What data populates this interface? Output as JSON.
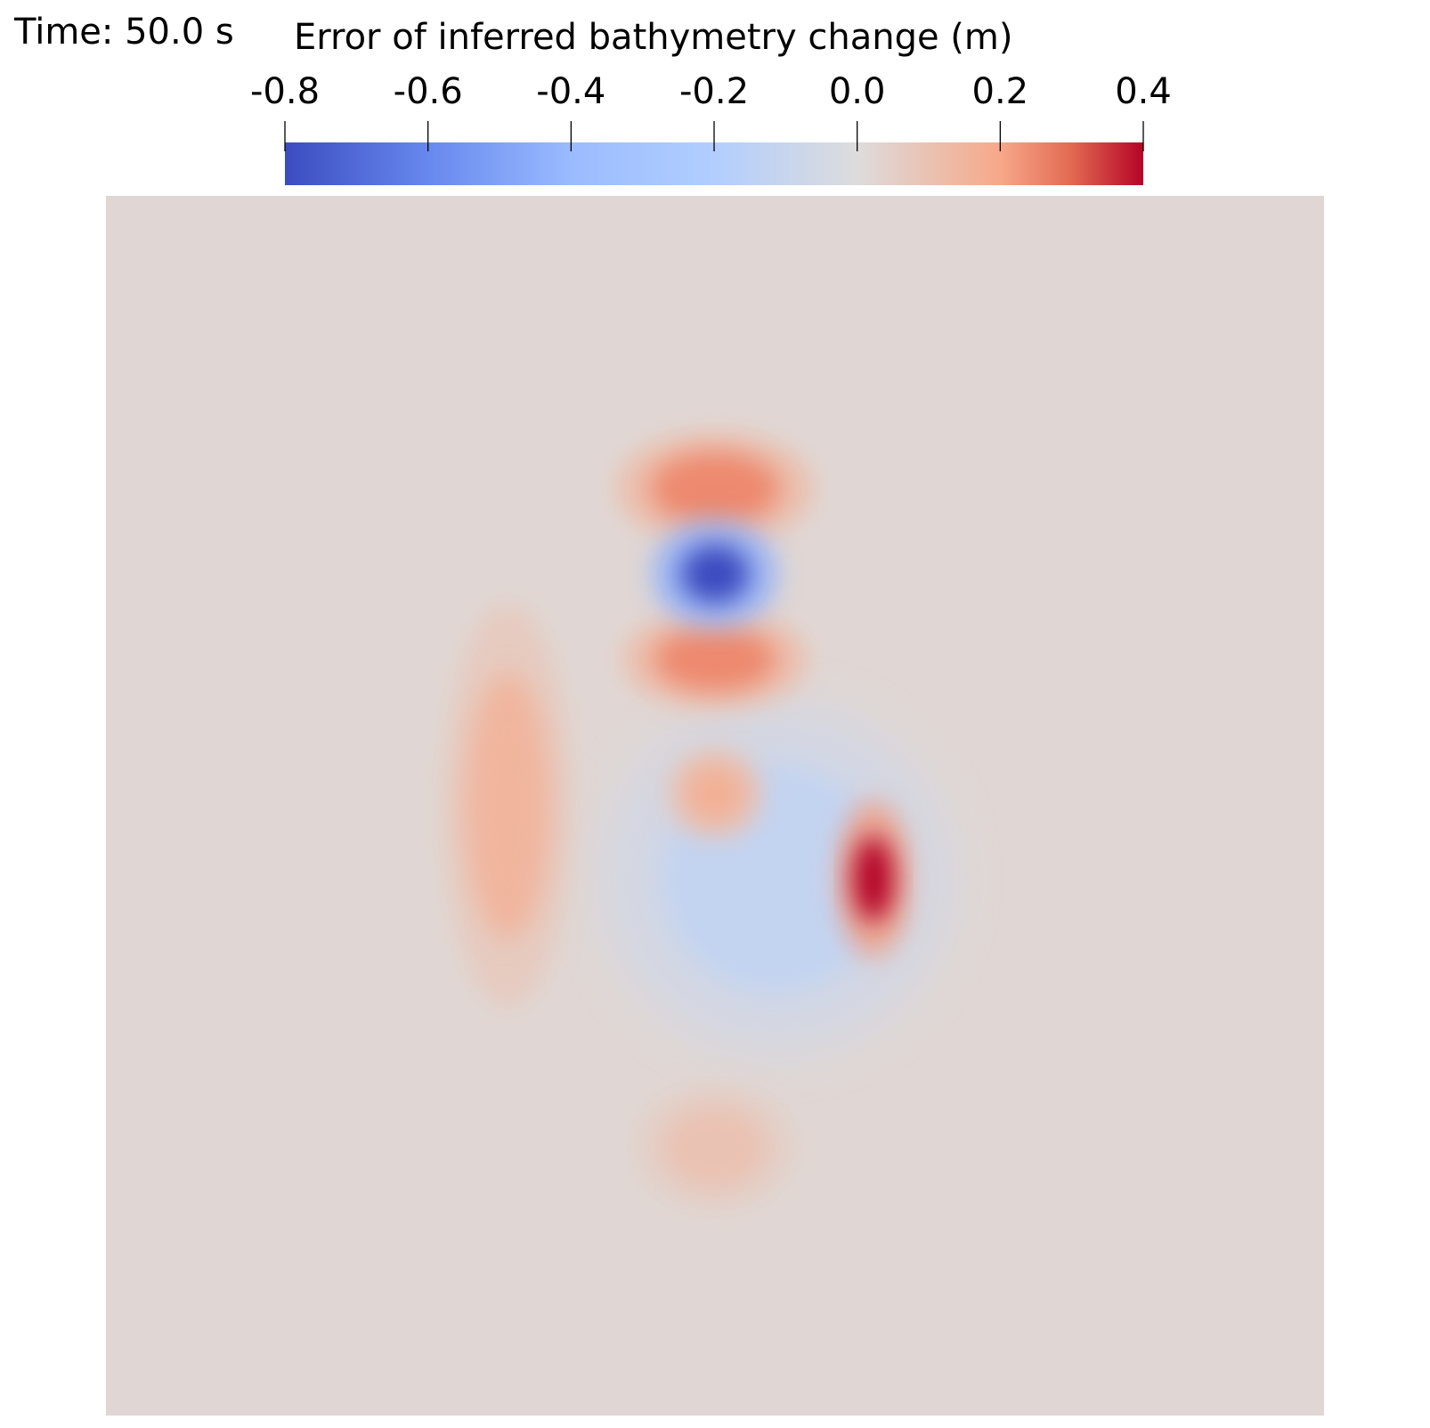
{
  "time_label": "Time: 50.0 s",
  "chart_data": {
    "type": "heatmap",
    "title": "Error of inferred bathymetry change (m)",
    "colorbar": {
      "range": [
        -0.8,
        0.4
      ],
      "ticks": [
        -0.8,
        -0.6,
        -0.4,
        -0.2,
        0.0,
        0.2,
        0.4
      ],
      "tick_labels": [
        "-0.8",
        "-0.6",
        "-0.4",
        "-0.2",
        "0.0",
        "0.2",
        "0.4"
      ],
      "colormap": "coolwarm",
      "stops": [
        {
          "value": -0.8,
          "color": "#3b4cc0"
        },
        {
          "value": -0.6,
          "color": "#6788ee"
        },
        {
          "value": -0.4,
          "color": "#9abbff"
        },
        {
          "value": -0.2,
          "color": "#b2ceff"
        },
        {
          "value": 0.0,
          "color": "#dddcdc"
        },
        {
          "value": 0.2,
          "color": "#f7a889"
        },
        {
          "value": 0.3,
          "color": "#e26952"
        },
        {
          "value": 0.4,
          "color": "#b40426"
        }
      ]
    },
    "background_value": 0.02,
    "features": [
      {
        "name": "min-blob",
        "x": 0.5,
        "y": 0.31,
        "value": -0.8
      },
      {
        "name": "ring-top",
        "x": 0.5,
        "y": 0.24,
        "value": 0.25
      },
      {
        "name": "ring-bottom",
        "x": 0.5,
        "y": 0.38,
        "value": 0.25
      },
      {
        "name": "max-blob",
        "x": 0.63,
        "y": 0.56,
        "value": 0.4
      },
      {
        "name": "small-center",
        "x": 0.5,
        "y": 0.49,
        "value": 0.17
      },
      {
        "name": "left-lobe",
        "x": 0.33,
        "y": 0.5,
        "value": 0.15
      },
      {
        "name": "low-center",
        "x": 0.55,
        "y": 0.56,
        "value": -0.12
      },
      {
        "name": "bottom-blob",
        "x": 0.5,
        "y": 0.78,
        "value": 0.1
      }
    ]
  }
}
